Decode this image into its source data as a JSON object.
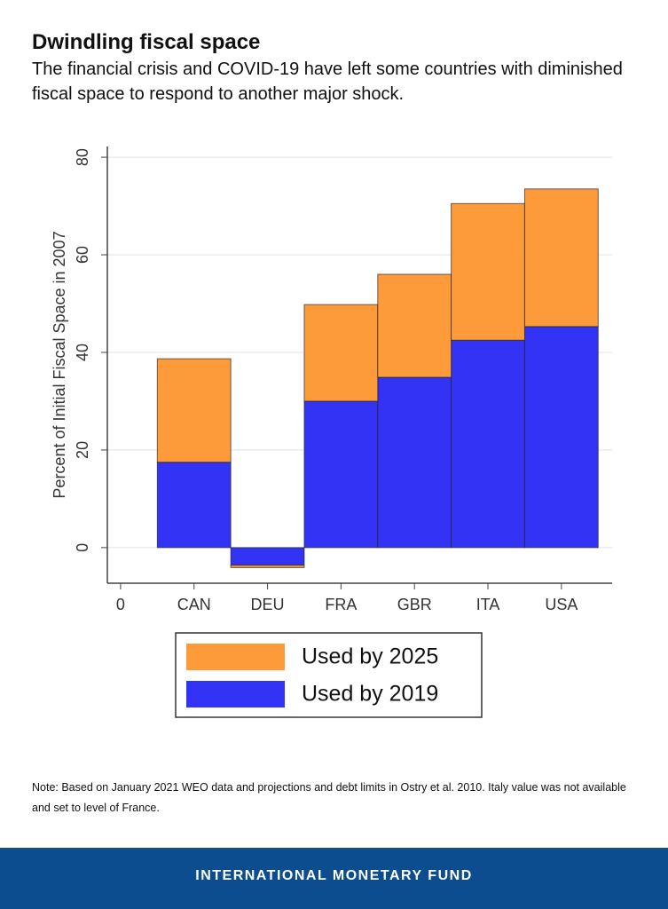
{
  "header": {
    "title": "Dwindling fiscal space",
    "subtitle": "The financial crisis and COVID-19 have left some countries with diminished fiscal space to respond to another major shock."
  },
  "chart_data": {
    "type": "bar",
    "stacked": true,
    "x": [
      1,
      2,
      3,
      4,
      5,
      6
    ],
    "xlim": [
      -0.18,
      6.69
    ],
    "xticks": [
      0,
      {
        "value": 1,
        "label": "CAN"
      },
      {
        "value": 2,
        "label": "DEU"
      },
      {
        "value": 3,
        "label": "FRA"
      },
      {
        "value": 4,
        "label": "GBR"
      },
      {
        "value": 5,
        "label": "ITA"
      },
      {
        "value": 6,
        "label": "USA"
      }
    ],
    "ylabel": "Percent of Initial Fiscal Space in 2007",
    "ylim": [
      -7.3,
      82.2
    ],
    "yticks": [
      0,
      20,
      40,
      60,
      80
    ],
    "grid": true,
    "series": [
      {
        "name": "Used by 2019",
        "color": "#3333f5",
        "values": [
          17.5,
          -3.6,
          30,
          34.9,
          42.5,
          45.3
        ]
      },
      {
        "name": "Used by 2025",
        "color": "#fd9a3a",
        "values": [
          21.2,
          -0.5,
          19.8,
          21.1,
          28,
          28.2
        ]
      }
    ],
    "legend_order": [
      1,
      0
    ]
  },
  "note": "Note: Based on January 2021 WEO data and projections and debt limits in Ostry et al. 2010. Italy value was not available and set to level of France.",
  "footer": "INTERNATIONAL MONETARY FUND"
}
